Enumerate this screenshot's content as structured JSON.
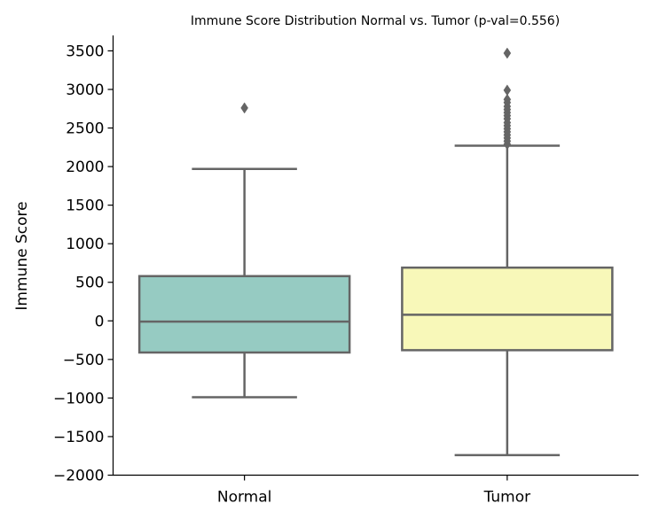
{
  "chart_data": {
    "type": "box",
    "title": "Immune Score Distribution Normal vs. Tumor (p-val=0.556)",
    "xlabel": "",
    "ylabel": "Immune Score",
    "ylim": [
      -2000,
      3700
    ],
    "yticks": [
      -2000,
      -1500,
      -1000,
      -500,
      0,
      500,
      1000,
      1500,
      2000,
      2500,
      3000,
      3500
    ],
    "yticks_text": [
      "−2000",
      "−1500",
      "−1000",
      "−500",
      "0",
      "500",
      "1000",
      "1500",
      "2000",
      "2500",
      "3000",
      "3500"
    ],
    "grid": false,
    "categories": [
      "Normal",
      "Tumor"
    ],
    "boxes": [
      {
        "category": "Normal",
        "color": "#96cbc2",
        "whisker_low": -990,
        "q1": -410,
        "median": -10,
        "q3": 580,
        "whisker_high": 1970,
        "outliers": [
          2760
        ]
      },
      {
        "category": "Tumor",
        "color": "#f8f8b9",
        "whisker_low": -1740,
        "q1": -380,
        "median": 80,
        "q3": 690,
        "whisker_high": 2270,
        "outliers": [
          2290,
          2330,
          2370,
          2410,
          2450,
          2490,
          2530,
          2570,
          2620,
          2660,
          2700,
          2740,
          2780,
          2830,
          2870,
          2990,
          3470
        ]
      }
    ],
    "line_color": "#656565"
  }
}
